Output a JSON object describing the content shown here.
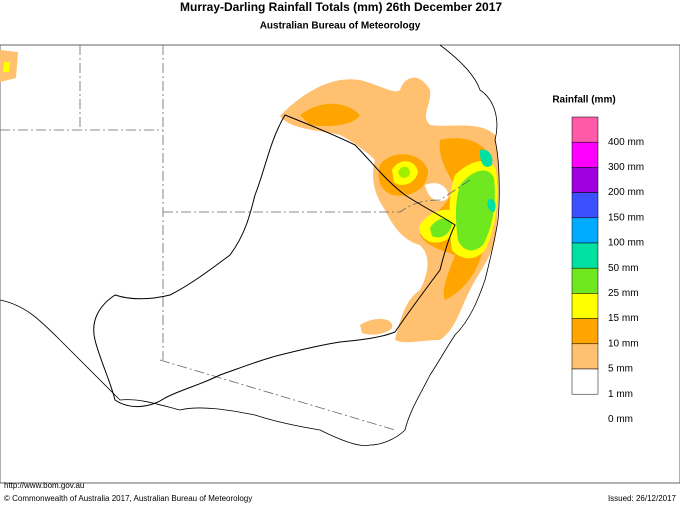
{
  "title": "Murray-Darling Rainfall Totals (mm)",
  "date": "26th December 2017",
  "subtitle": "Australian Bureau of Meteorology",
  "legend": {
    "title": "Rainfall (mm)",
    "items": [
      {
        "label": "400 mm",
        "color": "#ff5aa8"
      },
      {
        "label": "300 mm",
        "color": "#ff00ff"
      },
      {
        "label": "200 mm",
        "color": "#a000e0"
      },
      {
        "label": "150 mm",
        "color": "#3c50ff"
      },
      {
        "label": "100 mm",
        "color": "#00aaff"
      },
      {
        "label": "50 mm",
        "color": "#00e0a0"
      },
      {
        "label": "25 mm",
        "color": "#70e820"
      },
      {
        "label": "15 mm",
        "color": "#ffff00"
      },
      {
        "label": "10 mm",
        "color": "#ffa500"
      },
      {
        "label": "5 mm",
        "color": "#ffc070"
      },
      {
        "label": "1 mm",
        "color": "#ffffff"
      },
      {
        "label": "0 mm",
        "color": "#ffffff"
      }
    ]
  },
  "footer": {
    "url": "http://www.bom.gov.au",
    "copyright": "© Commonwealth of Australia 2017, Australian Bureau of Meteorology",
    "issued": "Issued: 26/12/2017"
  }
}
